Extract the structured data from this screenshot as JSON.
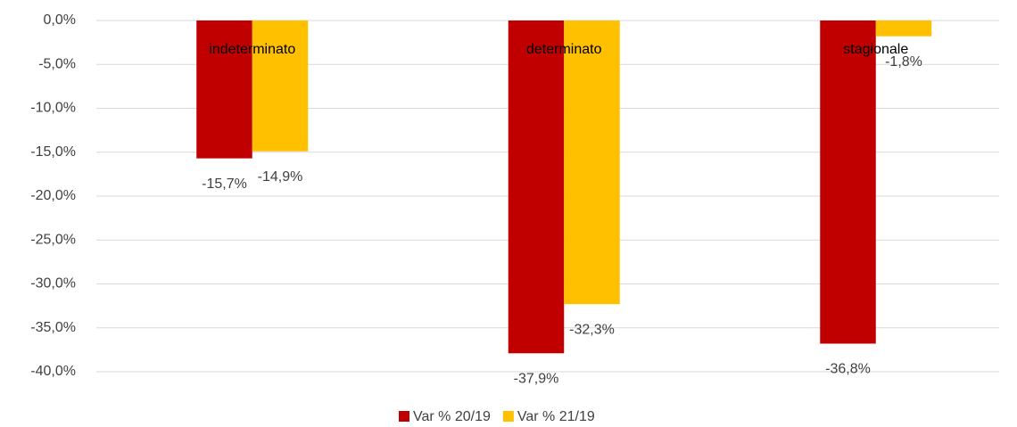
{
  "chart_data": {
    "type": "bar",
    "categories": [
      "indeterminato",
      "determinato",
      "stagionale"
    ],
    "series": [
      {
        "name": "Var % 20/19",
        "color": "#c00000",
        "values": [
          -15.7,
          -37.9,
          -36.8
        ],
        "value_labels": [
          "-15,7%",
          "-37,9%",
          "-36,8%"
        ]
      },
      {
        "name": "Var % 21/19",
        "color": "#ffc000",
        "values": [
          -14.9,
          -32.3,
          -1.8
        ],
        "value_labels": [
          "-14,9%",
          "-32,3%",
          "-1,8%"
        ]
      }
    ],
    "ylim": [
      -40,
      0
    ],
    "yticks": [
      {
        "value": 0,
        "label": "0,0%"
      },
      {
        "value": -5,
        "label": "-5,0%"
      },
      {
        "value": -10,
        "label": "-10,0%"
      },
      {
        "value": -15,
        "label": "-15,0%"
      },
      {
        "value": -20,
        "label": "-20,0%"
      },
      {
        "value": -25,
        "label": "-25,0%"
      },
      {
        "value": -30,
        "label": "-30,0%"
      },
      {
        "value": -35,
        "label": "-35,0%"
      },
      {
        "value": -40,
        "label": "-40,0%"
      }
    ],
    "grid": true,
    "legend": "bottom"
  }
}
